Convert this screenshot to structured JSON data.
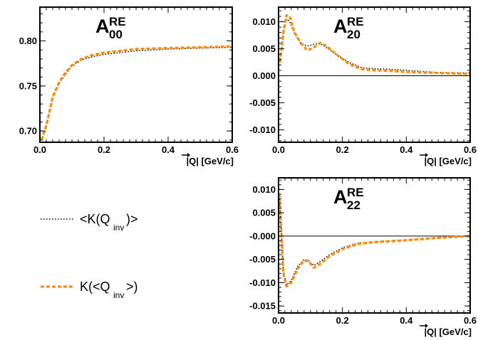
{
  "chart_data": [
    {
      "type": "line",
      "title": "A",
      "title_sub": "00",
      "title_sup": "RE",
      "xlabel": "|Q| [GeV/c]",
      "xlim": [
        0.0,
        0.6
      ],
      "ylim": [
        0.6875,
        0.8375
      ],
      "xticks": [
        "0.0",
        "0.2",
        "0.4",
        "0.6"
      ],
      "yticks": [
        {
          "v": 0.7,
          "label": "0.70"
        },
        {
          "v": 0.75,
          "label": "0.75"
        },
        {
          "v": 0.8,
          "label": "0.80"
        }
      ],
      "zero_line": false,
      "series": [
        {
          "name": "<K(Qinv)>",
          "color": "#000000",
          "style": "dotted",
          "x": [
            0.005,
            0.02,
            0.04,
            0.06,
            0.08,
            0.1,
            0.13,
            0.16,
            0.2,
            0.25,
            0.3,
            0.4,
            0.5,
            0.6
          ],
          "y": [
            0.69,
            0.705,
            0.737,
            0.753,
            0.763,
            0.772,
            0.779,
            0.782,
            0.785,
            0.787,
            0.789,
            0.791,
            0.792,
            0.793
          ]
        },
        {
          "name": "K(<Qinv>)",
          "color": "#ff8c00",
          "style": "dashed",
          "x": [
            0.005,
            0.02,
            0.04,
            0.06,
            0.08,
            0.1,
            0.13,
            0.16,
            0.2,
            0.25,
            0.3,
            0.4,
            0.5,
            0.6
          ],
          "y": [
            0.69,
            0.706,
            0.738,
            0.754,
            0.765,
            0.773,
            0.78,
            0.784,
            0.787,
            0.789,
            0.791,
            0.792,
            0.793,
            0.794
          ]
        }
      ]
    },
    {
      "type": "line",
      "title": "A",
      "title_sub": "20",
      "title_sup": "RE",
      "xlabel": "|Q| [GeV/c]",
      "xlim": [
        0.0,
        0.6
      ],
      "ylim": [
        -0.0123,
        0.0127
      ],
      "xticks": [
        "0.0",
        "0.2",
        "0.4",
        "0.6"
      ],
      "yticks": [
        {
          "v": -0.01,
          "label": "-0.010"
        },
        {
          "v": -0.005,
          "label": "-0.005"
        },
        {
          "v": 0.0,
          "label": "0.000"
        },
        {
          "v": 0.005,
          "label": "0.005"
        },
        {
          "v": 0.01,
          "label": "0.010"
        }
      ],
      "zero_line": true,
      "series": [
        {
          "name": "<K(Qinv)>",
          "color": "#000000",
          "style": "dotted",
          "x": [
            0.005,
            0.015,
            0.025,
            0.035,
            0.05,
            0.07,
            0.09,
            0.11,
            0.13,
            0.15,
            0.18,
            0.22,
            0.26,
            0.3,
            0.35,
            0.4,
            0.5,
            0.6
          ],
          "y": [
            0.0025,
            0.008,
            0.0105,
            0.01,
            0.0078,
            0.006,
            0.0055,
            0.0058,
            0.006,
            0.0052,
            0.004,
            0.0025,
            0.0015,
            0.0013,
            0.0012,
            0.001,
            0.0006,
            0.0005
          ]
        },
        {
          "name": "K(<Qinv>)",
          "color": "#ff8c00",
          "style": "dashed",
          "x": [
            0.005,
            0.015,
            0.025,
            0.035,
            0.05,
            0.07,
            0.09,
            0.11,
            0.13,
            0.15,
            0.18,
            0.22,
            0.26,
            0.3,
            0.35,
            0.4,
            0.5,
            0.6
          ],
          "y": [
            0.0025,
            0.008,
            0.0112,
            0.011,
            0.008,
            0.006,
            0.0047,
            0.0052,
            0.0061,
            0.0055,
            0.004,
            0.0022,
            0.0012,
            0.001,
            0.0009,
            0.0007,
            0.0005,
            0.0003
          ]
        }
      ]
    },
    {
      "type": "line",
      "title": "A",
      "title_sub": "22",
      "title_sup": "RE",
      "xlabel": "|Q| [GeV/c]",
      "xlim": [
        0.0,
        0.6
      ],
      "ylim": [
        -0.0165,
        0.0125
      ],
      "xticks": [
        "0.0",
        "0.2",
        "0.4",
        "0.6"
      ],
      "yticks": [
        {
          "v": -0.015,
          "label": "-0.015"
        },
        {
          "v": -0.01,
          "label": "-0.010"
        },
        {
          "v": -0.005,
          "label": "-0.005"
        },
        {
          "v": 0.0,
          "label": "-0.000"
        },
        {
          "v": 0.005,
          "label": "0.005"
        },
        {
          "v": 0.01,
          "label": "0.010"
        }
      ],
      "zero_line": true,
      "series": [
        {
          "name": "<K(Qinv)>",
          "color": "#000000",
          "style": "dotted",
          "x": [
            0.003,
            0.008,
            0.015,
            0.025,
            0.04,
            0.06,
            0.08,
            0.095,
            0.11,
            0.13,
            0.16,
            0.2,
            0.25,
            0.3,
            0.4,
            0.5,
            0.6
          ],
          "y": [
            0.008,
            0.002,
            -0.0075,
            -0.0105,
            -0.0095,
            -0.0065,
            -0.005,
            -0.0053,
            -0.0063,
            -0.0055,
            -0.004,
            -0.0025,
            -0.0015,
            -0.0012,
            -0.0008,
            -0.0003,
            0.0
          ]
        },
        {
          "name": "K(<Qinv>)",
          "color": "#ff8c00",
          "style": "dashed",
          "x": [
            0.003,
            0.008,
            0.015,
            0.025,
            0.04,
            0.06,
            0.08,
            0.095,
            0.11,
            0.13,
            0.16,
            0.2,
            0.25,
            0.3,
            0.4,
            0.5,
            0.6
          ],
          "y": [
            0.009,
            0.002,
            -0.008,
            -0.0108,
            -0.01,
            -0.007,
            -0.0052,
            -0.0055,
            -0.0068,
            -0.006,
            -0.0043,
            -0.0028,
            -0.0017,
            -0.0013,
            -0.0009,
            -0.0004,
            0.0
          ]
        }
      ]
    }
  ],
  "legend": {
    "entries": [
      {
        "pre": "<K(Q",
        "sub": "inv",
        "post": ")>",
        "color": "#000000",
        "style": "dotted"
      },
      {
        "pre": "K(<Q",
        "sub": "inv",
        "post": ">)",
        "color": "#ff8c00",
        "style": "dashed"
      }
    ]
  }
}
